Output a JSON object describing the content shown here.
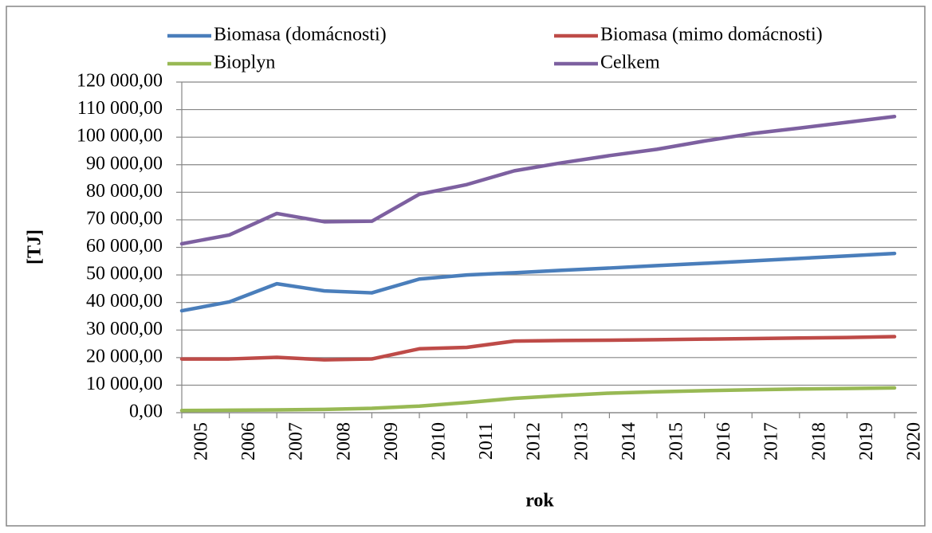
{
  "chart_data": {
    "type": "line",
    "xlabel": "rok",
    "ylabel": "[TJ]",
    "categories": [
      "2005",
      "2006",
      "2007",
      "2008",
      "2009",
      "2010",
      "2011",
      "2012",
      "2013",
      "2014",
      "2015",
      "2016",
      "2017",
      "2018",
      "2019",
      "2020"
    ],
    "series": [
      {
        "name": "Biomasa (domácnosti)",
        "color": "#4a7ebb",
        "values": [
          37000,
          40200,
          46800,
          44200,
          43500,
          48500,
          50000,
          50800,
          51700,
          52500,
          53400,
          54200,
          55100,
          56000,
          56900,
          57800
        ]
      },
      {
        "name": "Biomasa (mimo domácnosti)",
        "color": "#be4b48",
        "values": [
          19500,
          19500,
          20100,
          19200,
          19500,
          23200,
          23700,
          26000,
          26200,
          26300,
          26500,
          26700,
          26900,
          27100,
          27300,
          27600
        ]
      },
      {
        "name": "Bioplyn",
        "color": "#98b954",
        "values": [
          800,
          900,
          1000,
          1200,
          1600,
          2400,
          3700,
          5200,
          6200,
          7100,
          7600,
          8000,
          8300,
          8600,
          8800,
          9000
        ]
      },
      {
        "name": "Celkem",
        "color": "#7d60a0",
        "values": [
          61300,
          64500,
          72300,
          69300,
          69500,
          79300,
          82800,
          87800,
          90700,
          93300,
          95600,
          98600,
          101300,
          103300,
          105400,
          107500
        ]
      }
    ],
    "ylim": [
      0,
      120000
    ],
    "yticks": [
      {
        "value": 0,
        "label": "0,00"
      },
      {
        "value": 10000,
        "label": "10 000,00"
      },
      {
        "value": 20000,
        "label": "20 000,00"
      },
      {
        "value": 30000,
        "label": "30 000,00"
      },
      {
        "value": 40000,
        "label": "40 000,00"
      },
      {
        "value": 50000,
        "label": "50 000,00"
      },
      {
        "value": 60000,
        "label": "60 000,00"
      },
      {
        "value": 70000,
        "label": "70 000,00"
      },
      {
        "value": 80000,
        "label": "80 000,00"
      },
      {
        "value": 90000,
        "label": "90 000,00"
      },
      {
        "value": 100000,
        "label": "100 000,00"
      },
      {
        "value": 110000,
        "label": "110 000,00"
      },
      {
        "value": 120000,
        "label": "120 000,00"
      }
    ],
    "grid": true,
    "legend": "top"
  }
}
